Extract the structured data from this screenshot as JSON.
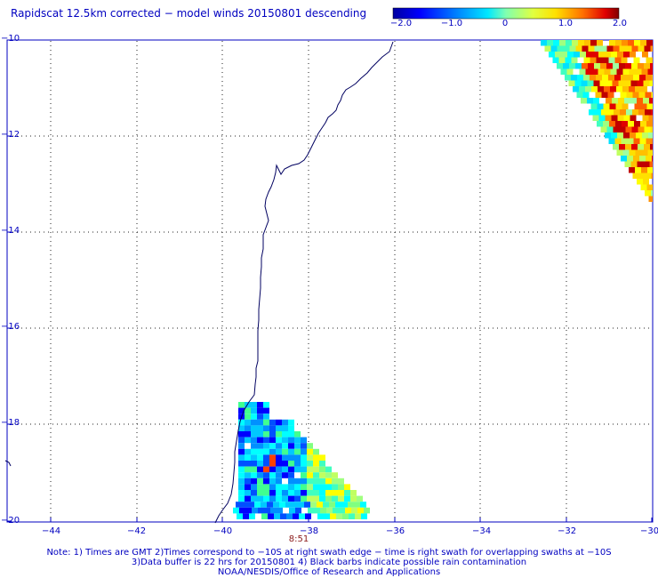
{
  "title": "Rapidscat 12.5km corrected − model winds 20150801 descending",
  "colorbar": {
    "labels": [
      "−2.0",
      "−1.0",
      "0",
      "1.0",
      "2.0"
    ],
    "min": -2.0,
    "max": 2.0
  },
  "map": {
    "lon_range": [
      -45,
      -30
    ],
    "lat_range": [
      -20,
      -10
    ],
    "lon_ticks": [
      "−44",
      "−42",
      "−40",
      "−38",
      "−36",
      "−34",
      "−32",
      "−30"
    ],
    "lat_ticks": [
      "−10",
      "−12",
      "−14",
      "−16",
      "−18",
      "−20"
    ],
    "grid": "dotted",
    "swath_time": "8:51"
  },
  "footer": {
    "line1": "Note: 1) Times are GMT 2)Times correspond to −10S at right swath edge − time is right swath for overlapping swaths at −10S",
    "line2": "3)Data buffer is 22 hrs for 20150801 4) Black barbs indicate possible rain contamination",
    "line3": "NOAA/NESDIS/Office of Research and Applications"
  }
}
